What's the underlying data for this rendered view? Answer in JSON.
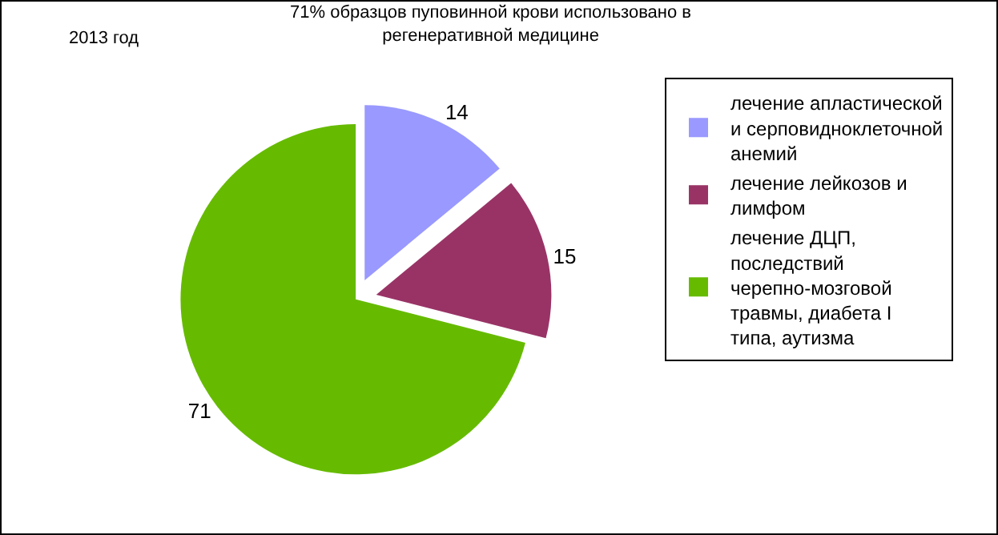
{
  "chart_data": {
    "type": "pie",
    "title": "71% образцов пуповинной крови использовано в регенеративной медицине",
    "annotations": [
      "2013 год"
    ],
    "categories": [
      "лечение апластической и серповидноклеточной анемий",
      "лечение лейкозов и лимфом",
      "лечение ДЦП, последствий черепно-мозговой травмы, диабета I типа, аутизма"
    ],
    "values": [
      14,
      15,
      71
    ],
    "colors": [
      "#9999ff",
      "#993366",
      "#66bb00"
    ],
    "data_labels": true,
    "legend": "right"
  }
}
